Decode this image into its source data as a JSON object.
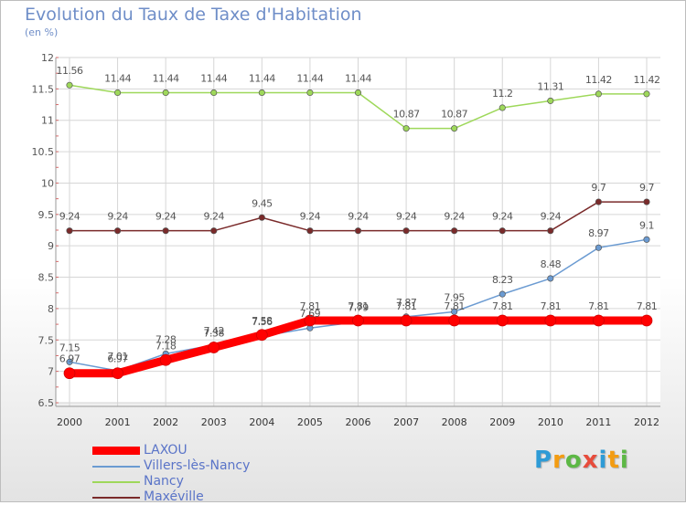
{
  "chart_data": {
    "type": "line",
    "title": "Evolution du Taux de Taxe d'Habitation",
    "subtitle": "(en %)",
    "x": [
      "2000",
      "2001",
      "2002",
      "2003",
      "2004",
      "2005",
      "2006",
      "2007",
      "2008",
      "2009",
      "2010",
      "2011",
      "2012"
    ],
    "ylim": [
      6.5,
      12
    ],
    "yticks": [
      "6.5",
      "7",
      "7.5",
      "8",
      "8.5",
      "9",
      "9.5",
      "10",
      "10.5",
      "11",
      "11.5",
      "12"
    ],
    "grid": true,
    "legend_position": "bottom-left",
    "series": [
      {
        "name": "LAXOU",
        "color": "#ff0000",
        "values": [
          6.97,
          6.97,
          7.18,
          7.38,
          7.58,
          7.81,
          7.81,
          7.81,
          7.81,
          7.81,
          7.81,
          7.81,
          7.81
        ],
        "labels": [
          "6.97",
          "6.97",
          "7.18",
          "7.38",
          "7.58",
          "7.81",
          "7.81",
          "7.81",
          "7.81",
          "7.81",
          "7.81",
          "7.81",
          "7.81"
        ]
      },
      {
        "name": "Villers-lès-Nancy",
        "color": "#6b9bd2",
        "values": [
          7.15,
          7.01,
          7.28,
          7.42,
          7.56,
          7.69,
          7.79,
          7.87,
          7.95,
          8.23,
          8.48,
          8.97,
          9.1
        ],
        "labels": [
          "7.15",
          "7.01",
          "7.28",
          "7.42",
          "7.56",
          "7.69",
          "7.79",
          "7.87",
          "7.95",
          "8.23",
          "8.48",
          "8.97",
          "9.1"
        ]
      },
      {
        "name": "Nancy",
        "color": "#9ed85a",
        "values": [
          11.56,
          11.44,
          11.44,
          11.44,
          11.44,
          11.44,
          11.44,
          10.87,
          10.87,
          11.2,
          11.31,
          11.42,
          11.42
        ],
        "labels": [
          "11.56",
          "11.44",
          "11.44",
          "11.44",
          "11.44",
          "11.44",
          "11.44",
          "10.87",
          "10.87",
          "11.2",
          "11.31",
          "11.42",
          "11.42"
        ]
      },
      {
        "name": "Maxéville",
        "color": "#7a2a2a",
        "values": [
          9.24,
          9.24,
          9.24,
          9.24,
          9.45,
          9.24,
          9.24,
          9.24,
          9.24,
          9.24,
          9.24,
          9.7,
          9.7
        ],
        "labels": [
          "9.24",
          "9.24",
          "9.24",
          "9.24",
          "9.45",
          "9.24",
          "9.24",
          "9.24",
          "9.24",
          "9.24",
          "9.24",
          "9.7",
          "9.7"
        ]
      }
    ]
  },
  "logo": {
    "text": "Proxiti",
    "letters": [
      "P",
      "r",
      "o",
      "x",
      "i",
      "t",
      "i"
    ],
    "colors": [
      "#2e9bd6",
      "#f39c12",
      "#5db845",
      "#e74c3c",
      "#2e9bd6",
      "#f39c12",
      "#5db845"
    ]
  }
}
